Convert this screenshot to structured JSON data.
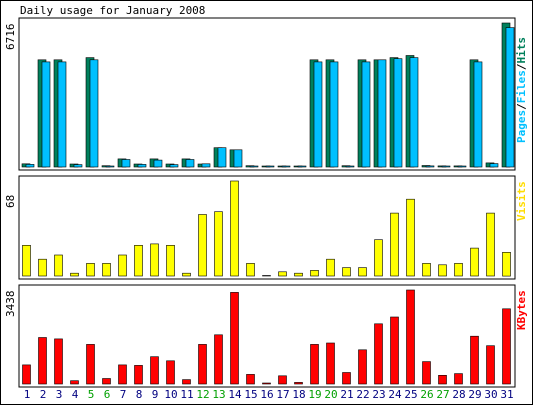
{
  "chart_data": [
    {
      "type": "bar",
      "title": "Daily usage for January 2008",
      "ylabel_max": "6716",
      "legend": [
        "Pages",
        "/",
        "Files",
        "/",
        "Hits"
      ],
      "series": [
        {
          "name": "Hits",
          "color": "#00805c",
          "values": [
            150,
            5000,
            5000,
            140,
            5100,
            60,
            380,
            140,
            380,
            140,
            380,
            140,
            900,
            800,
            60,
            40,
            40,
            40,
            5000,
            5000,
            60,
            5000,
            5000,
            5100,
            5200,
            70,
            50,
            50,
            5000,
            190,
            6716
          ]
        },
        {
          "name": "Files",
          "color": "#00c0ff",
          "values": [
            120,
            4900,
            4900,
            110,
            5000,
            40,
            350,
            120,
            320,
            110,
            350,
            150,
            900,
            800,
            40,
            20,
            20,
            20,
            4900,
            4900,
            40,
            4900,
            5000,
            5050,
            5100,
            50,
            30,
            30,
            4900,
            160,
            6500
          ]
        }
      ],
      "ylim": [
        0,
        6716
      ]
    },
    {
      "type": "bar",
      "ylabel_max": "68",
      "legend": [
        "Visits"
      ],
      "series": [
        {
          "name": "Visits",
          "color": "#ffff00",
          "values": [
            22,
            12,
            15,
            2,
            9,
            9,
            15,
            22,
            23,
            22,
            2,
            44,
            46,
            68,
            9,
            0,
            3,
            2,
            4,
            12,
            6,
            6,
            26,
            45,
            55,
            9,
            8,
            9,
            20,
            45,
            17
          ]
        }
      ],
      "ylim": [
        0,
        68
      ]
    },
    {
      "type": "bar",
      "ylabel_max": "3438",
      "legend": [
        "KBytes"
      ],
      "series": [
        {
          "name": "KBytes",
          "color": "#ff0000",
          "values": [
            700,
            1700,
            1650,
            120,
            1450,
            200,
            700,
            680,
            1000,
            850,
            160,
            1450,
            1800,
            3350,
            350,
            10,
            300,
            60,
            1450,
            1500,
            420,
            1250,
            2200,
            2450,
            3438,
            820,
            320,
            380,
            1750,
            1400,
            2750
          ]
        }
      ],
      "ylim": [
        0,
        3438
      ]
    }
  ],
  "x_labels": [
    "1",
    "2",
    "3",
    "4",
    "5",
    "6",
    "7",
    "8",
    "9",
    "10",
    "11",
    "12",
    "13",
    "14",
    "15",
    "16",
    "17",
    "18",
    "19",
    "20",
    "21",
    "22",
    "23",
    "24",
    "25",
    "26",
    "27",
    "28",
    "29",
    "30",
    "31"
  ],
  "weekend_days": [
    5,
    6,
    12,
    13,
    19,
    20,
    26,
    27
  ],
  "colors": {
    "weekday": "#000080",
    "weekend": "#00a000"
  }
}
